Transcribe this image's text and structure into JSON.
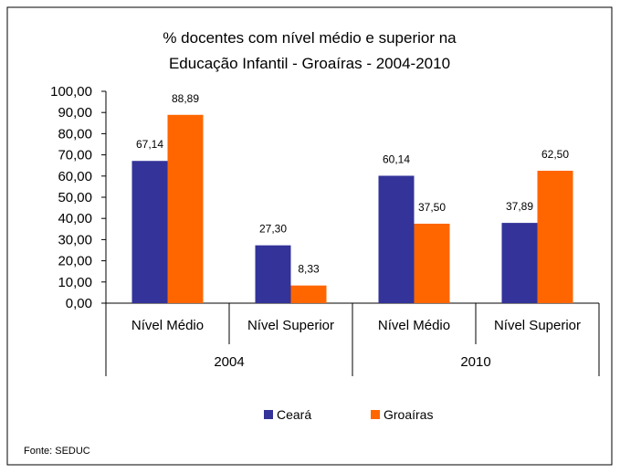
{
  "chart_data": {
    "type": "bar",
    "title_lines": [
      "% docentes com nível médio e superior na",
      "Educação Infantil - Groaíras - 2004-2010"
    ],
    "groups": [
      "2004",
      "2010"
    ],
    "categories": [
      "Nível Médio",
      "Nível Superior",
      "Nível Médio",
      "Nível Superior"
    ],
    "category_group": [
      0,
      0,
      1,
      1
    ],
    "series": [
      {
        "name": "Ceará",
        "color": "#333399",
        "values": [
          67.14,
          27.3,
          60.14,
          37.89
        ]
      },
      {
        "name": "Groaíras",
        "color": "#FF6600",
        "values": [
          88.89,
          8.33,
          37.5,
          62.5
        ]
      }
    ],
    "data_labels": [
      [
        "67,14",
        "27,30",
        "60,14",
        "37,89"
      ],
      [
        "88,89",
        "8,33",
        "37,50",
        "62,50"
      ]
    ],
    "yticks": [
      "0,00",
      "10,00",
      "20,00",
      "30,00",
      "40,00",
      "50,00",
      "60,00",
      "70,00",
      "80,00",
      "90,00",
      "100,00"
    ],
    "ylim": [
      0,
      100
    ],
    "grid": false,
    "legend_position": "bottom"
  },
  "footer": {
    "source": "Fonte: SEDUC"
  }
}
